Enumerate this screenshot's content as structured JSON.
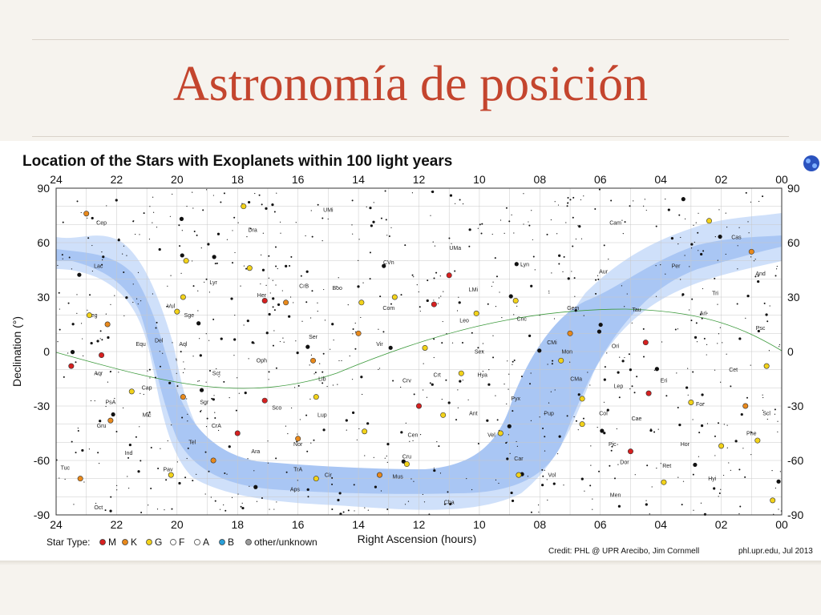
{
  "slide": {
    "title": "Astronomía de posición"
  },
  "chart_data": {
    "type": "scatter",
    "title": "Location of the Stars with Exoplanets within 100 light years",
    "xlabel": "Right Ascension (hours)",
    "ylabel": "Declination (°)",
    "xlim": [
      24,
      0
    ],
    "ylim": [
      -90,
      90
    ],
    "x_ticks": [
      "24",
      "22",
      "20",
      "18",
      "16",
      "14",
      "12",
      "10",
      "08",
      "06",
      "04",
      "02",
      "00"
    ],
    "y_ticks": [
      "90",
      "60",
      "30",
      "0",
      "-30",
      "-60",
      "-90"
    ],
    "grid": true,
    "legend": {
      "placement": "bottom-left",
      "title": "Star Type:",
      "items": [
        {
          "label": "M",
          "color": "#d62020"
        },
        {
          "label": "K",
          "color": "#e8891c"
        },
        {
          "label": "G",
          "color": "#f2d21a"
        },
        {
          "label": "F",
          "color": "#ffffff"
        },
        {
          "label": "A",
          "color": "#ffffff"
        },
        {
          "label": "B",
          "color": "#2a9fd8"
        },
        {
          "label": "other/unknown",
          "color": "#9a9a9a"
        }
      ]
    },
    "constellations": [
      {
        "name": "UMi",
        "ra": 15.0,
        "dec": 77
      },
      {
        "name": "Cep",
        "ra": 22.5,
        "dec": 70
      },
      {
        "name": "Dra",
        "ra": 17.5,
        "dec": 66
      },
      {
        "name": "Cam",
        "ra": 5.5,
        "dec": 70
      },
      {
        "name": "Cas",
        "ra": 1.5,
        "dec": 62
      },
      {
        "name": "UMa",
        "ra": 10.8,
        "dec": 56
      },
      {
        "name": "CVn",
        "ra": 13.0,
        "dec": 48
      },
      {
        "name": "Lyn",
        "ra": 8.5,
        "dec": 47
      },
      {
        "name": "Lac",
        "ra": 22.6,
        "dec": 46
      },
      {
        "name": "Per",
        "ra": 3.5,
        "dec": 46
      },
      {
        "name": "And",
        "ra": 0.7,
        "dec": 42
      },
      {
        "name": "Aur",
        "ra": 5.9,
        "dec": 43
      },
      {
        "name": "Lyr",
        "ra": 18.8,
        "dec": 37
      },
      {
        "name": "CrB",
        "ra": 15.8,
        "dec": 35
      },
      {
        "name": "Boo",
        "ra": 14.7,
        "dec": 34
      },
      {
        "name": "LMi",
        "ra": 10.2,
        "dec": 33
      },
      {
        "name": "Her",
        "ra": 17.2,
        "dec": 30
      },
      {
        "name": "Tri",
        "ra": 2.2,
        "dec": 31
      },
      {
        "name": "Vul",
        "ra": 20.2,
        "dec": 24
      },
      {
        "name": "Com",
        "ra": 13.0,
        "dec": 23
      },
      {
        "name": "Gem",
        "ra": 6.9,
        "dec": 23
      },
      {
        "name": "Sge",
        "ra": 19.6,
        "dec": 19
      },
      {
        "name": "Ari",
        "ra": 2.6,
        "dec": 20
      },
      {
        "name": "Tau",
        "ra": 4.8,
        "dec": 22
      },
      {
        "name": "Peg",
        "ra": 22.8,
        "dec": 19
      },
      {
        "name": "Leo",
        "ra": 10.5,
        "dec": 16
      },
      {
        "name": "Cnc",
        "ra": 8.6,
        "dec": 17
      },
      {
        "name": "Psc",
        "ra": 0.7,
        "dec": 12
      },
      {
        "name": "Ser",
        "ra": 15.5,
        "dec": 7
      },
      {
        "name": "CMi",
        "ra": 7.6,
        "dec": 4
      },
      {
        "name": "Equ",
        "ra": 21.2,
        "dec": 3
      },
      {
        "name": "Del",
        "ra": 20.6,
        "dec": 5
      },
      {
        "name": "Aql",
        "ra": 19.8,
        "dec": 3
      },
      {
        "name": "Vir",
        "ra": 13.3,
        "dec": 3
      },
      {
        "name": "Ori",
        "ra": 5.5,
        "dec": 2
      },
      {
        "name": "Sex",
        "ra": 10.0,
        "dec": -1
      },
      {
        "name": "Mon",
        "ra": 7.1,
        "dec": -1
      },
      {
        "name": "Oph",
        "ra": 17.2,
        "dec": -6
      },
      {
        "name": "Sct",
        "ra": 18.7,
        "dec": -13
      },
      {
        "name": "Cet",
        "ra": 1.6,
        "dec": -11
      },
      {
        "name": "Crt",
        "ra": 11.4,
        "dec": -14
      },
      {
        "name": "Hya",
        "ra": 9.9,
        "dec": -14
      },
      {
        "name": "Lib",
        "ra": 15.2,
        "dec": -16
      },
      {
        "name": "CMa",
        "ra": 6.8,
        "dec": -16
      },
      {
        "name": "Crv",
        "ra": 12.4,
        "dec": -17
      },
      {
        "name": "Eri",
        "ra": 3.9,
        "dec": -17
      },
      {
        "name": "Cap",
        "ra": 21.0,
        "dec": -21
      },
      {
        "name": "Lep",
        "ra": 5.4,
        "dec": -20
      },
      {
        "name": "Aqr",
        "ra": 22.6,
        "dec": -13
      },
      {
        "name": "PsA",
        "ra": 22.2,
        "dec": -29
      },
      {
        "name": "Sgr",
        "ra": 19.1,
        "dec": -29
      },
      {
        "name": "Pyx",
        "ra": 8.8,
        "dec": -27
      },
      {
        "name": "For",
        "ra": 2.7,
        "dec": -30
      },
      {
        "name": "Sco",
        "ra": 16.7,
        "dec": -32
      },
      {
        "name": "Ant",
        "ra": 10.2,
        "dec": -35
      },
      {
        "name": "Lup",
        "ra": 15.2,
        "dec": -36
      },
      {
        "name": "Mic",
        "ra": 21.0,
        "dec": -36
      },
      {
        "name": "Pup",
        "ra": 7.7,
        "dec": -35
      },
      {
        "name": "Col",
        "ra": 5.9,
        "dec": -35
      },
      {
        "name": "Scl",
        "ra": 0.5,
        "dec": -35
      },
      {
        "name": "Cae",
        "ra": 4.8,
        "dec": -38
      },
      {
        "name": "Gru",
        "ra": 22.5,
        "dec": -42
      },
      {
        "name": "Vel",
        "ra": 9.6,
        "dec": -47
      },
      {
        "name": "CrA",
        "ra": 18.7,
        "dec": -42
      },
      {
        "name": "Cen",
        "ra": 12.2,
        "dec": -47
      },
      {
        "name": "Phe",
        "ra": 1.0,
        "dec": -46
      },
      {
        "name": "Tel",
        "ra": 19.5,
        "dec": -51
      },
      {
        "name": "Nor",
        "ra": 16.0,
        "dec": -52
      },
      {
        "name": "Pic",
        "ra": 5.6,
        "dec": -52
      },
      {
        "name": "Hor",
        "ra": 3.2,
        "dec": -52
      },
      {
        "name": "Ara",
        "ra": 17.4,
        "dec": -56
      },
      {
        "name": "Ind",
        "ra": 21.6,
        "dec": -57
      },
      {
        "name": "Cru",
        "ra": 12.4,
        "dec": -59
      },
      {
        "name": "Car",
        "ra": 8.7,
        "dec": -60
      },
      {
        "name": "Dor",
        "ra": 5.2,
        "dec": -62
      },
      {
        "name": "Tuc",
        "ra": 23.7,
        "dec": -65
      },
      {
        "name": "Pav",
        "ra": 20.3,
        "dec": -66
      },
      {
        "name": "TrA",
        "ra": 16.0,
        "dec": -66
      },
      {
        "name": "Ret",
        "ra": 3.8,
        "dec": -64
      },
      {
        "name": "Cir",
        "ra": 15.0,
        "dec": -69
      },
      {
        "name": "Mus",
        "ra": 12.7,
        "dec": -70
      },
      {
        "name": "Vol",
        "ra": 7.6,
        "dec": -69
      },
      {
        "name": "Hyi",
        "ra": 2.3,
        "dec": -71
      },
      {
        "name": "Aps",
        "ra": 16.1,
        "dec": -77
      },
      {
        "name": "Men",
        "ra": 5.5,
        "dec": -80
      },
      {
        "name": "Cha",
        "ra": 11.0,
        "dec": -84
      },
      {
        "name": "Oct",
        "ra": 22.6,
        "dec": -87
      }
    ],
    "exoplanet_stars": [
      {
        "ra": 23.0,
        "dec": 76,
        "type": "K"
      },
      {
        "ra": 17.8,
        "dec": 80,
        "type": "G"
      },
      {
        "ra": 2.4,
        "dec": 72,
        "type": "G"
      },
      {
        "ra": 19.7,
        "dec": 50,
        "type": "G"
      },
      {
        "ra": 1.0,
        "dec": 55,
        "type": "K"
      },
      {
        "ra": 11.0,
        "dec": 42,
        "type": "M"
      },
      {
        "ra": 17.6,
        "dec": 46,
        "type": "G"
      },
      {
        "ra": 13.9,
        "dec": 27,
        "type": "G"
      },
      {
        "ra": 19.8,
        "dec": 30,
        "type": "G"
      },
      {
        "ra": 17.1,
        "dec": 28,
        "type": "M"
      },
      {
        "ra": 16.4,
        "dec": 27,
        "type": "K"
      },
      {
        "ra": 12.8,
        "dec": 30,
        "type": "G"
      },
      {
        "ra": 11.5,
        "dec": 26,
        "type": "M"
      },
      {
        "ra": 8.8,
        "dec": 28,
        "type": "G"
      },
      {
        "ra": 22.9,
        "dec": 20,
        "type": "G"
      },
      {
        "ra": 22.3,
        "dec": 15,
        "type": "K"
      },
      {
        "ra": 20.0,
        "dec": 22,
        "type": "G"
      },
      {
        "ra": 14.0,
        "dec": 10,
        "type": "K"
      },
      {
        "ra": 11.8,
        "dec": 2,
        "type": "G"
      },
      {
        "ra": 10.1,
        "dec": 21,
        "type": "G"
      },
      {
        "ra": 7.0,
        "dec": 10,
        "type": "K"
      },
      {
        "ra": 4.5,
        "dec": 5,
        "type": "M"
      },
      {
        "ra": 22.5,
        "dec": -2,
        "type": "M"
      },
      {
        "ra": 23.5,
        "dec": -8,
        "type": "M"
      },
      {
        "ra": 15.5,
        "dec": -5,
        "type": "K"
      },
      {
        "ra": 10.6,
        "dec": -12,
        "type": "G"
      },
      {
        "ra": 7.3,
        "dec": -5,
        "type": "G"
      },
      {
        "ra": 0.5,
        "dec": -8,
        "type": "G"
      },
      {
        "ra": 21.5,
        "dec": -22,
        "type": "G"
      },
      {
        "ra": 19.8,
        "dec": -25,
        "type": "K"
      },
      {
        "ra": 17.1,
        "dec": -27,
        "type": "M"
      },
      {
        "ra": 15.4,
        "dec": -25,
        "type": "G"
      },
      {
        "ra": 12.0,
        "dec": -30,
        "type": "M"
      },
      {
        "ra": 11.2,
        "dec": -35,
        "type": "G"
      },
      {
        "ra": 6.6,
        "dec": -26,
        "type": "G"
      },
      {
        "ra": 4.4,
        "dec": -23,
        "type": "M"
      },
      {
        "ra": 3.0,
        "dec": -28,
        "type": "G"
      },
      {
        "ra": 1.2,
        "dec": -30,
        "type": "K"
      },
      {
        "ra": 22.2,
        "dec": -38,
        "type": "K"
      },
      {
        "ra": 18.0,
        "dec": -45,
        "type": "M"
      },
      {
        "ra": 16.0,
        "dec": -48,
        "type": "K"
      },
      {
        "ra": 13.8,
        "dec": -44,
        "type": "G"
      },
      {
        "ra": 9.3,
        "dec": -45,
        "type": "G"
      },
      {
        "ra": 6.6,
        "dec": -40,
        "type": "G"
      },
      {
        "ra": 0.8,
        "dec": -49,
        "type": "G"
      },
      {
        "ra": 2.0,
        "dec": -52,
        "type": "G"
      },
      {
        "ra": 5.0,
        "dec": -55,
        "type": "M"
      },
      {
        "ra": 12.4,
        "dec": -62,
        "type": "G"
      },
      {
        "ra": 20.2,
        "dec": -68,
        "type": "G"
      },
      {
        "ra": 23.2,
        "dec": -70,
        "type": "K"
      },
      {
        "ra": 15.4,
        "dec": -70,
        "type": "G"
      },
      {
        "ra": 13.3,
        "dec": -68,
        "type": "K"
      },
      {
        "ra": 8.7,
        "dec": -68,
        "type": "G"
      },
      {
        "ra": 3.9,
        "dec": -72,
        "type": "G"
      },
      {
        "ra": 0.3,
        "dec": -82,
        "type": "G"
      },
      {
        "ra": 18.8,
        "dec": -60,
        "type": "K"
      }
    ],
    "credit": "Credit: PHL @ UPR Arecibo, Jim Cornmell",
    "source": "phl.upr.edu, Jul 2013"
  }
}
